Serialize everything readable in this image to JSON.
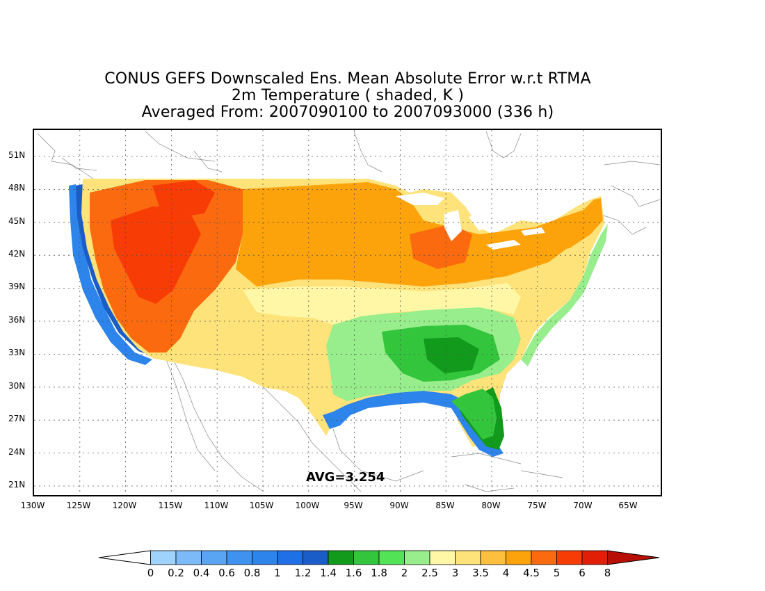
{
  "title": {
    "line1": "CONUS GEFS Downscaled Ens. Mean Absolute Error w.r.t RTMA",
    "line2": "2m Temperature ( shaded, K )",
    "line3": "Averaged From: 2007090100 to 2007093000 (336 h)"
  },
  "latitude_labels": [
    "51N",
    "48N",
    "45N",
    "42N",
    "39N",
    "36N",
    "33N",
    "30N",
    "27N",
    "24N",
    "21N"
  ],
  "longitude_labels": [
    "130W",
    "125W",
    "120W",
    "115W",
    "110W",
    "105W",
    "100W",
    "95W",
    "90W",
    "85W",
    "80W",
    "75W",
    "70W",
    "65W"
  ],
  "average_label": "AVG=3.254",
  "colorbar": {
    "labels": [
      "0",
      "0.2",
      "0.4",
      "0.6",
      "0.8",
      "1",
      "1.2",
      "1.4",
      "1.6",
      "1.8",
      "2",
      "2.5",
      "3",
      "3.5",
      "4",
      "4.5",
      "5",
      "6",
      "8"
    ],
    "colors": [
      "#ffffff",
      "#9fd3fb",
      "#7cbaf7",
      "#5aa5f3",
      "#3f92ef",
      "#2d84ea",
      "#1f6fe6",
      "#1a5dc9",
      "#119a1b",
      "#33c63c",
      "#52e456",
      "#98ee8c",
      "#fff7a6",
      "#fee27a",
      "#fcbf3e",
      "#fca20a",
      "#fb6a0f",
      "#f83c06",
      "#e11f07",
      "#b80f05"
    ]
  },
  "field_colors": {
    "ocean_low": "#2d84ea",
    "ocean_mid": "#1f6fe6",
    "green_dark": "#119a1b",
    "green": "#33c63c",
    "green_light": "#98ee8c",
    "yellow_light": "#fff7a6",
    "yellow": "#fee27a",
    "orange_light": "#fcbf3e",
    "orange": "#fca20a",
    "orange_red": "#fb6a0f",
    "red": "#f83c06"
  }
}
